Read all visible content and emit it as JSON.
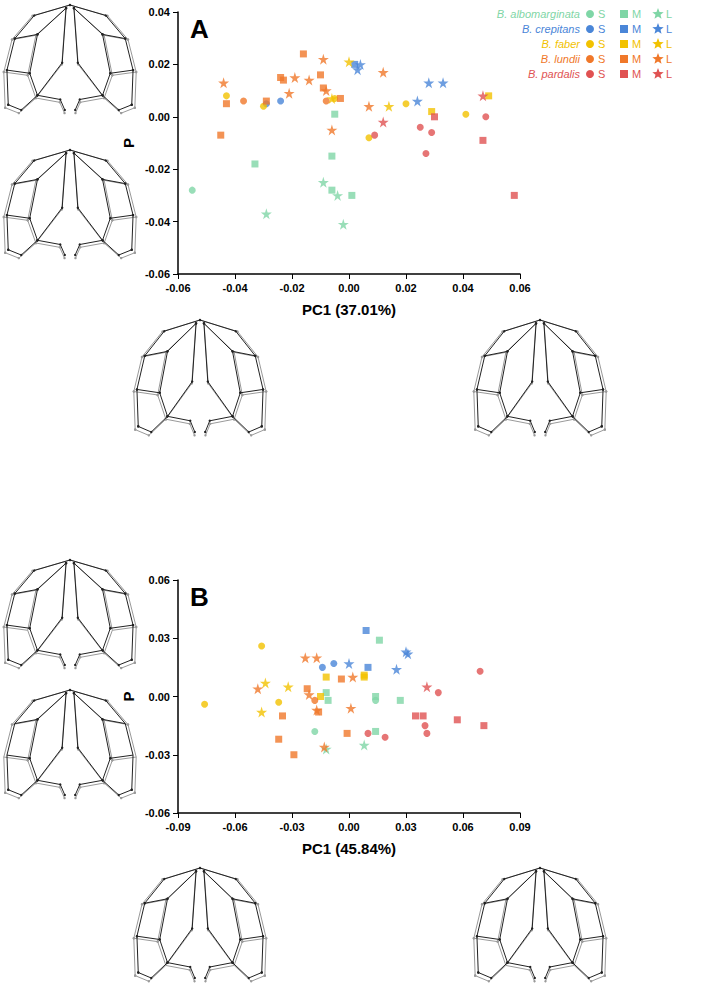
{
  "chart_data": [
    {
      "type": "scatter",
      "panel_label": "A",
      "xlabel": "PC1 (37.01%)",
      "ylabel": "P",
      "xlim": [
        -0.06,
        0.06
      ],
      "xticks": [
        -0.06,
        -0.04,
        -0.02,
        {
          "value": 0,
          "label": "0.00"
        },
        0.02,
        0.04,
        0.06
      ],
      "ylim": [
        -0.06,
        0.04
      ],
      "yticks": [
        -0.06,
        -0.04,
        -0.02,
        {
          "value": 0,
          "label": "0.00"
        },
        0.02,
        0.04
      ],
      "grid": false,
      "legend": "upper right",
      "size_classes": [
        {
          "label": "S",
          "marker": "circle"
        },
        {
          "label": "M",
          "marker": "square"
        },
        {
          "label": "L",
          "marker": "star"
        }
      ],
      "series": [
        {
          "name": "B. albomarginata",
          "color": "#7fd6a6",
          "points": [
            [
              -0.055,
              -0.028,
              "S"
            ],
            [
              -0.033,
              -0.018,
              "M"
            ],
            [
              -0.029,
              -0.037,
              "L"
            ],
            [
              -0.009,
              -0.025,
              "L"
            ],
            [
              -0.006,
              -0.015,
              "M"
            ],
            [
              -0.005,
              0.001,
              "M"
            ],
            [
              -0.006,
              -0.028,
              "M"
            ],
            [
              -0.004,
              -0.03,
              "L"
            ],
            [
              0.001,
              -0.03,
              "M"
            ],
            [
              -0.002,
              -0.041,
              "L"
            ]
          ]
        },
        {
          "name": "B. crepitans",
          "color": "#4a86d8",
          "points": [
            [
              -0.029,
              0.005,
              "S"
            ],
            [
              -0.024,
              0.006,
              "S"
            ],
            [
              0.002,
              0.02,
              "M"
            ],
            [
              0.004,
              0.02,
              "L"
            ],
            [
              0.003,
              0.018,
              "L"
            ],
            [
              0.028,
              0.013,
              "L"
            ],
            [
              0.033,
              0.013,
              "L"
            ],
            [
              0.024,
              0.006,
              "L"
            ]
          ]
        },
        {
          "name": "B. faber",
          "color": "#f2c200",
          "points": [
            [
              -0.043,
              0.008,
              "S"
            ],
            [
              -0.03,
              0.004,
              "S"
            ],
            [
              0.0,
              0.021,
              "L"
            ],
            [
              -0.006,
              0.007,
              "L"
            ],
            [
              -0.005,
              0.007,
              "S"
            ],
            [
              0.014,
              0.004,
              "L"
            ],
            [
              0.007,
              -0.008,
              "S"
            ],
            [
              0.02,
              0.005,
              "S"
            ],
            [
              0.029,
              0.002,
              "M"
            ],
            [
              0.041,
              0.001,
              "S"
            ],
            [
              0.049,
              0.008,
              "M"
            ]
          ]
        },
        {
          "name": "B. lundii",
          "color": "#f0782a",
          "points": [
            [
              -0.044,
              0.013,
              "L"
            ],
            [
              -0.043,
              0.005,
              "M"
            ],
            [
              -0.045,
              -0.007,
              "M"
            ],
            [
              -0.037,
              0.006,
              "S"
            ],
            [
              -0.029,
              0.006,
              "M"
            ],
            [
              -0.024,
              0.015,
              "M"
            ],
            [
              -0.023,
              0.014,
              "M"
            ],
            [
              -0.021,
              0.009,
              "L"
            ],
            [
              -0.016,
              0.024,
              "M"
            ],
            [
              -0.019,
              0.015,
              "L"
            ],
            [
              -0.014,
              0.014,
              "L"
            ],
            [
              -0.01,
              0.016,
              "M"
            ],
            [
              -0.009,
              0.022,
              "L"
            ],
            [
              -0.009,
              0.011,
              "M"
            ],
            [
              -0.008,
              0.01,
              "L"
            ],
            [
              -0.006,
              -0.005,
              "L"
            ],
            [
              -0.003,
              0.007,
              "M"
            ],
            [
              0.007,
              0.004,
              "L"
            ],
            [
              0.012,
              0.017,
              "L"
            ],
            [
              -0.008,
              0.006,
              "S"
            ]
          ]
        },
        {
          "name": "B. pardalis",
          "color": "#e05252",
          "points": [
            [
              0.012,
              -0.002,
              "L"
            ],
            [
              0.009,
              -0.007,
              "S"
            ],
            [
              0.025,
              -0.004,
              "S"
            ],
            [
              0.027,
              -0.014,
              "S"
            ],
            [
              0.03,
              0.0,
              "M"
            ],
            [
              0.029,
              -0.006,
              "S"
            ],
            [
              0.047,
              0.008,
              "L"
            ],
            [
              0.048,
              0.0,
              "S"
            ],
            [
              0.047,
              -0.009,
              "M"
            ],
            [
              0.058,
              -0.03,
              "M"
            ]
          ]
        }
      ]
    },
    {
      "type": "scatter",
      "panel_label": "B",
      "xlabel": "PC1 (45.84%)",
      "ylabel": "P",
      "xlim": [
        -0.09,
        0.09
      ],
      "xticks": [
        -0.09,
        -0.06,
        -0.03,
        {
          "value": 0,
          "label": "0.00"
        },
        0.03,
        0.06,
        0.09
      ],
      "ylim": [
        -0.06,
        0.06
      ],
      "yticks": [
        -0.06,
        -0.03,
        {
          "value": 0,
          "label": "0.00"
        },
        0.03,
        0.06
      ],
      "grid": false,
      "size_classes": [
        {
          "label": "S",
          "marker": "circle"
        },
        {
          "label": "M",
          "marker": "square"
        },
        {
          "label": "L",
          "marker": "star"
        }
      ],
      "series": [
        {
          "name": "B. albomarginata",
          "color": "#7fd6a6",
          "points": [
            [
              0.016,
              0.029,
              "M"
            ],
            [
              -0.012,
              0.002,
              "M"
            ],
            [
              -0.012,
              -0.027,
              "L"
            ],
            [
              -0.018,
              -0.018,
              "S"
            ],
            [
              0.014,
              0.0,
              "M"
            ],
            [
              0.014,
              -0.002,
              "S"
            ],
            [
              0.014,
              -0.018,
              "M"
            ],
            [
              0.008,
              -0.025,
              "L"
            ],
            [
              0.027,
              -0.002,
              "M"
            ],
            [
              -0.011,
              -0.002,
              "M"
            ]
          ]
        },
        {
          "name": "B. crepitans",
          "color": "#4a86d8",
          "points": [
            [
              -0.014,
              0.015,
              "S"
            ],
            [
              -0.008,
              0.017,
              "S"
            ],
            [
              0.0,
              0.017,
              "L"
            ],
            [
              0.01,
              0.015,
              "M"
            ],
            [
              0.009,
              0.034,
              "M"
            ],
            [
              0.025,
              0.014,
              "L"
            ],
            [
              0.03,
              0.023,
              "L"
            ],
            [
              0.031,
              0.022,
              "L"
            ]
          ]
        },
        {
          "name": "B. faber",
          "color": "#f2c200",
          "points": [
            [
              -0.076,
              -0.004,
              "S"
            ],
            [
              -0.046,
              0.026,
              "S"
            ],
            [
              -0.044,
              0.007,
              "L"
            ],
            [
              -0.046,
              -0.008,
              "L"
            ],
            [
              -0.032,
              0.005,
              "L"
            ],
            [
              -0.037,
              -0.003,
              "S"
            ],
            [
              -0.012,
              0.01,
              "M"
            ],
            [
              -0.015,
              0.0,
              "M"
            ],
            [
              0.008,
              0.01,
              "M"
            ],
            [
              0.008,
              0.011,
              "M"
            ]
          ]
        },
        {
          "name": "B. lundii",
          "color": "#f0782a",
          "points": [
            [
              -0.048,
              0.004,
              "L"
            ],
            [
              -0.035,
              -0.01,
              "M"
            ],
            [
              -0.037,
              -0.022,
              "M"
            ],
            [
              -0.029,
              -0.03,
              "M"
            ],
            [
              -0.023,
              0.02,
              "L"
            ],
            [
              -0.017,
              0.02,
              "L"
            ],
            [
              -0.022,
              0.004,
              "M"
            ],
            [
              -0.021,
              0.001,
              "L"
            ],
            [
              -0.018,
              -0.002,
              "S"
            ],
            [
              -0.016,
              -0.008,
              "M"
            ],
            [
              -0.017,
              -0.007,
              "L"
            ],
            [
              -0.013,
              -0.026,
              "L"
            ],
            [
              -0.004,
              0.009,
              "M"
            ],
            [
              0.002,
              0.01,
              "L"
            ],
            [
              0.001,
              -0.006,
              "L"
            ],
            [
              -0.001,
              -0.019,
              "M"
            ]
          ]
        },
        {
          "name": "B. pardalis",
          "color": "#e05252",
          "points": [
            [
              0.069,
              0.013,
              "S"
            ],
            [
              0.041,
              0.005,
              "L"
            ],
            [
              0.047,
              0.002,
              "S"
            ],
            [
              0.035,
              -0.01,
              "M"
            ],
            [
              0.039,
              -0.01,
              "M"
            ],
            [
              0.04,
              -0.015,
              "S"
            ],
            [
              0.041,
              -0.019,
              "S"
            ],
            [
              0.057,
              -0.012,
              "M"
            ],
            [
              0.071,
              -0.015,
              "M"
            ],
            [
              0.019,
              -0.021,
              "S"
            ],
            [
              0.01,
              -0.019,
              "S"
            ]
          ]
        }
      ]
    }
  ]
}
